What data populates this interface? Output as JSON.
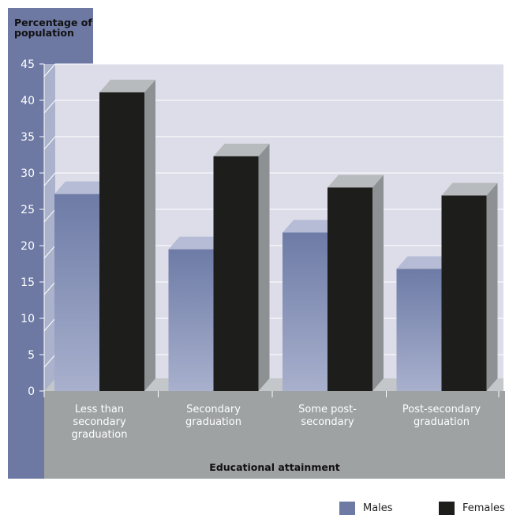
{
  "chart_data": {
    "type": "bar",
    "ylabel": "Percentage of\npopulation",
    "xlabel": "Educational attainment",
    "ylim": [
      0,
      45
    ],
    "yticks": [
      0,
      5,
      10,
      15,
      20,
      25,
      30,
      35,
      40,
      45
    ],
    "categories": [
      "Less than\nsecondary\ngraduation",
      "Secondary\ngraduation",
      "Some post-\nsecondary",
      "Post-secondary\ngraduation"
    ],
    "series": [
      {
        "name": "Males",
        "values": [
          27.1,
          19.5,
          21.8,
          16.8
        ],
        "color": "#6c7aa4"
      },
      {
        "name": "Females",
        "values": [
          41.1,
          32.3,
          28.0,
          26.9
        ],
        "color": "#1d1e1b"
      }
    ],
    "grid": true,
    "legend_position": "bottom-right",
    "style": "3d"
  }
}
